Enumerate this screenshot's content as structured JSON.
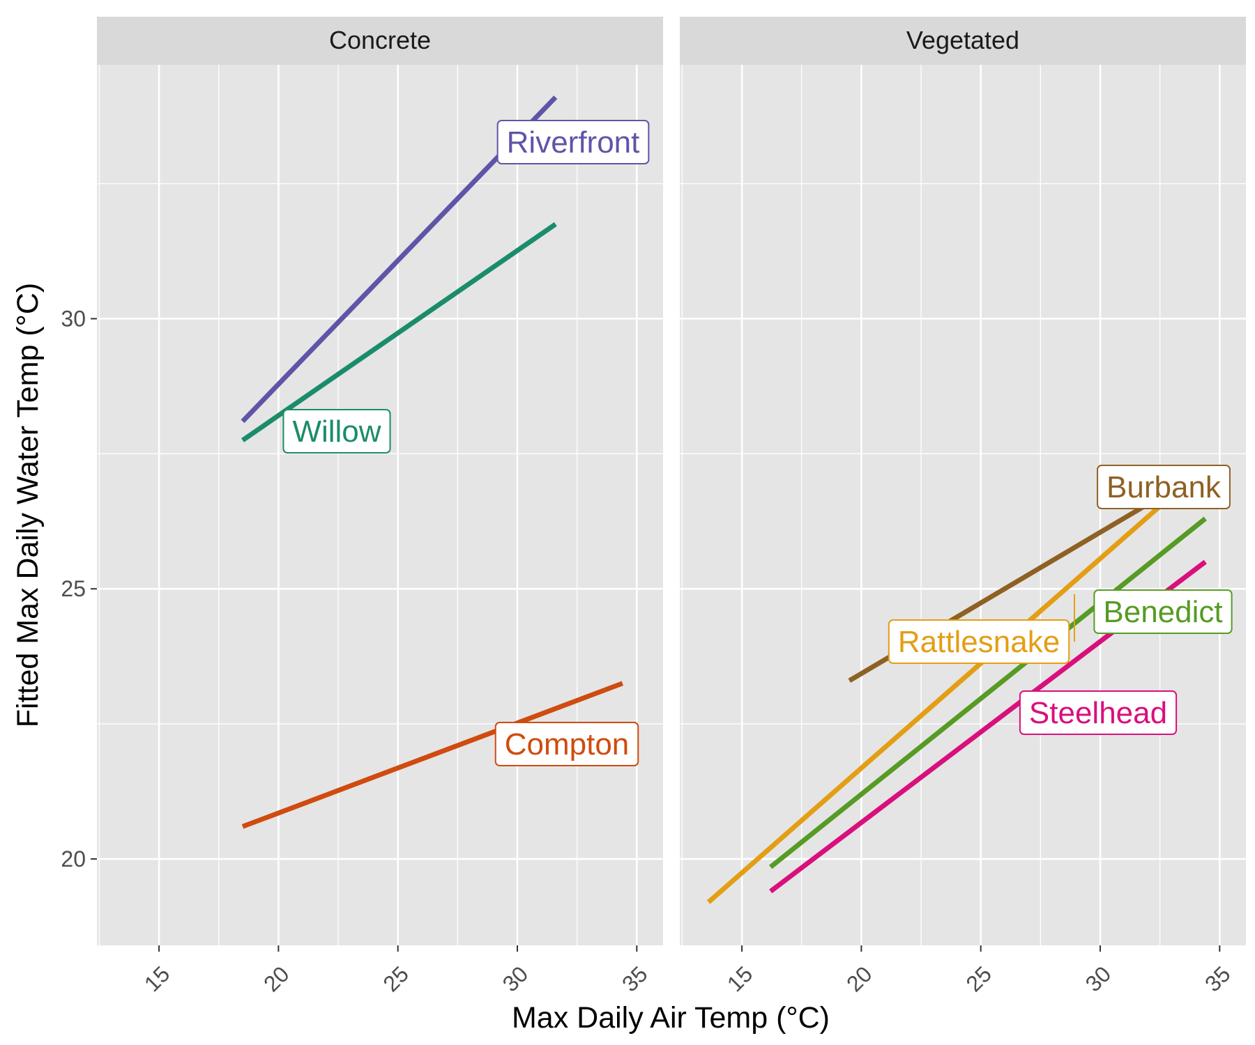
{
  "chart_data": {
    "type": "line",
    "xlabel": "Max Daily Air Temp (°C)",
    "ylabel": "Fitted Max Daily Water Temp (°C)",
    "xlim": [
      12.4,
      36.1
    ],
    "ylim": [
      18.4,
      34.7
    ],
    "x_ticks": [
      15,
      20,
      25,
      30,
      35
    ],
    "y_ticks": [
      20,
      25,
      30
    ],
    "grid": true,
    "legend": "none (direct labels)",
    "panels": [
      {
        "strip": "Concrete",
        "series": [
          {
            "name": "Riverfront",
            "color": "#5E55A8",
            "x": [
              18.5,
              31.6
            ],
            "y": [
              28.1,
              34.1
            ]
          },
          {
            "name": "Willow",
            "color": "#1B8C6B",
            "x": [
              18.5,
              31.6
            ],
            "y": [
              27.75,
              31.75
            ]
          },
          {
            "name": "Compton",
            "color": "#CF4B0F",
            "x": [
              18.5,
              34.4
            ],
            "y": [
              20.6,
              23.25
            ]
          }
        ]
      },
      {
        "strip": "Vegetated",
        "series": [
          {
            "name": "Burbank",
            "color": "#8E6123",
            "x": [
              19.5,
              32.5
            ],
            "y": [
              23.3,
              26.7
            ]
          },
          {
            "name": "Rattlesnake",
            "color": "#E39E14",
            "x": [
              13.6,
              33.2
            ],
            "y": [
              19.2,
              26.8
            ]
          },
          {
            "name": "Benedict",
            "color": "#569B23",
            "x": [
              16.2,
              34.4
            ],
            "y": [
              19.85,
              26.3
            ]
          },
          {
            "name": "Steelhead",
            "color": "#D90F7C",
            "x": [
              16.2,
              34.4
            ],
            "y": [
              19.4,
              25.5
            ]
          }
        ]
      }
    ]
  }
}
